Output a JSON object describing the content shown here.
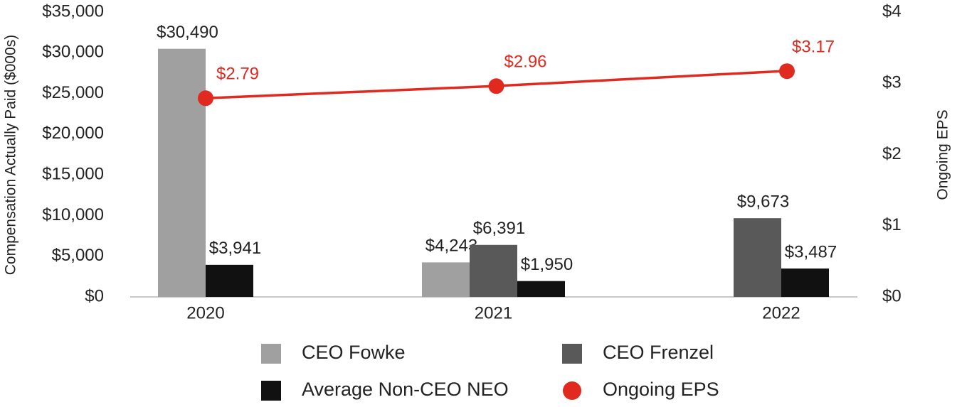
{
  "chart_data": {
    "type": "bar-line",
    "categories": [
      "2020",
      "2021",
      "2022"
    ],
    "y_label": "Compensation Actually Paid ($000s)",
    "y2_label": "Ongoing EPS",
    "ylim": [
      0,
      35000
    ],
    "yticks": [
      {
        "value": 0,
        "label": "$0"
      },
      {
        "value": 5000,
        "label": "$5,000"
      },
      {
        "value": 10000,
        "label": "$10,000"
      },
      {
        "value": 15000,
        "label": "$15,000"
      },
      {
        "value": 20000,
        "label": "$20,000"
      },
      {
        "value": 25000,
        "label": "$25,000"
      },
      {
        "value": 30000,
        "label": "$30,000"
      },
      {
        "value": 35000,
        "label": "$35,000"
      }
    ],
    "y2lim": [
      0,
      4
    ],
    "y2ticks": [
      {
        "value": 0,
        "label": "$0"
      },
      {
        "value": 1,
        "label": "$1"
      },
      {
        "value": 2,
        "label": "$2"
      },
      {
        "value": 3,
        "label": "$3"
      },
      {
        "value": 4,
        "label": "$4"
      }
    ],
    "series": [
      {
        "name": "CEO Fowke",
        "type": "bar",
        "color": "#a0a0a0",
        "values": [
          30490,
          4243,
          null
        ],
        "value_labels": [
          "$30,490",
          "$4,243",
          null
        ]
      },
      {
        "name": "CEO Frenzel",
        "type": "bar",
        "color": "#595959",
        "values": [
          null,
          6391,
          9673
        ],
        "value_labels": [
          null,
          "$6,391",
          "$9,673"
        ]
      },
      {
        "name": "Average Non-CEO NEO",
        "type": "bar",
        "color": "#111111",
        "values": [
          3941,
          1950,
          3487
        ],
        "value_labels": [
          "$3,941",
          "$1,950",
          "$3,487"
        ]
      },
      {
        "name": "Ongoing EPS",
        "type": "line",
        "axis": "y2",
        "color": "#e02a20",
        "values": [
          2.79,
          2.96,
          3.17
        ],
        "value_labels": [
          "$2.79",
          "$2.96",
          "$3.17"
        ]
      }
    ]
  }
}
